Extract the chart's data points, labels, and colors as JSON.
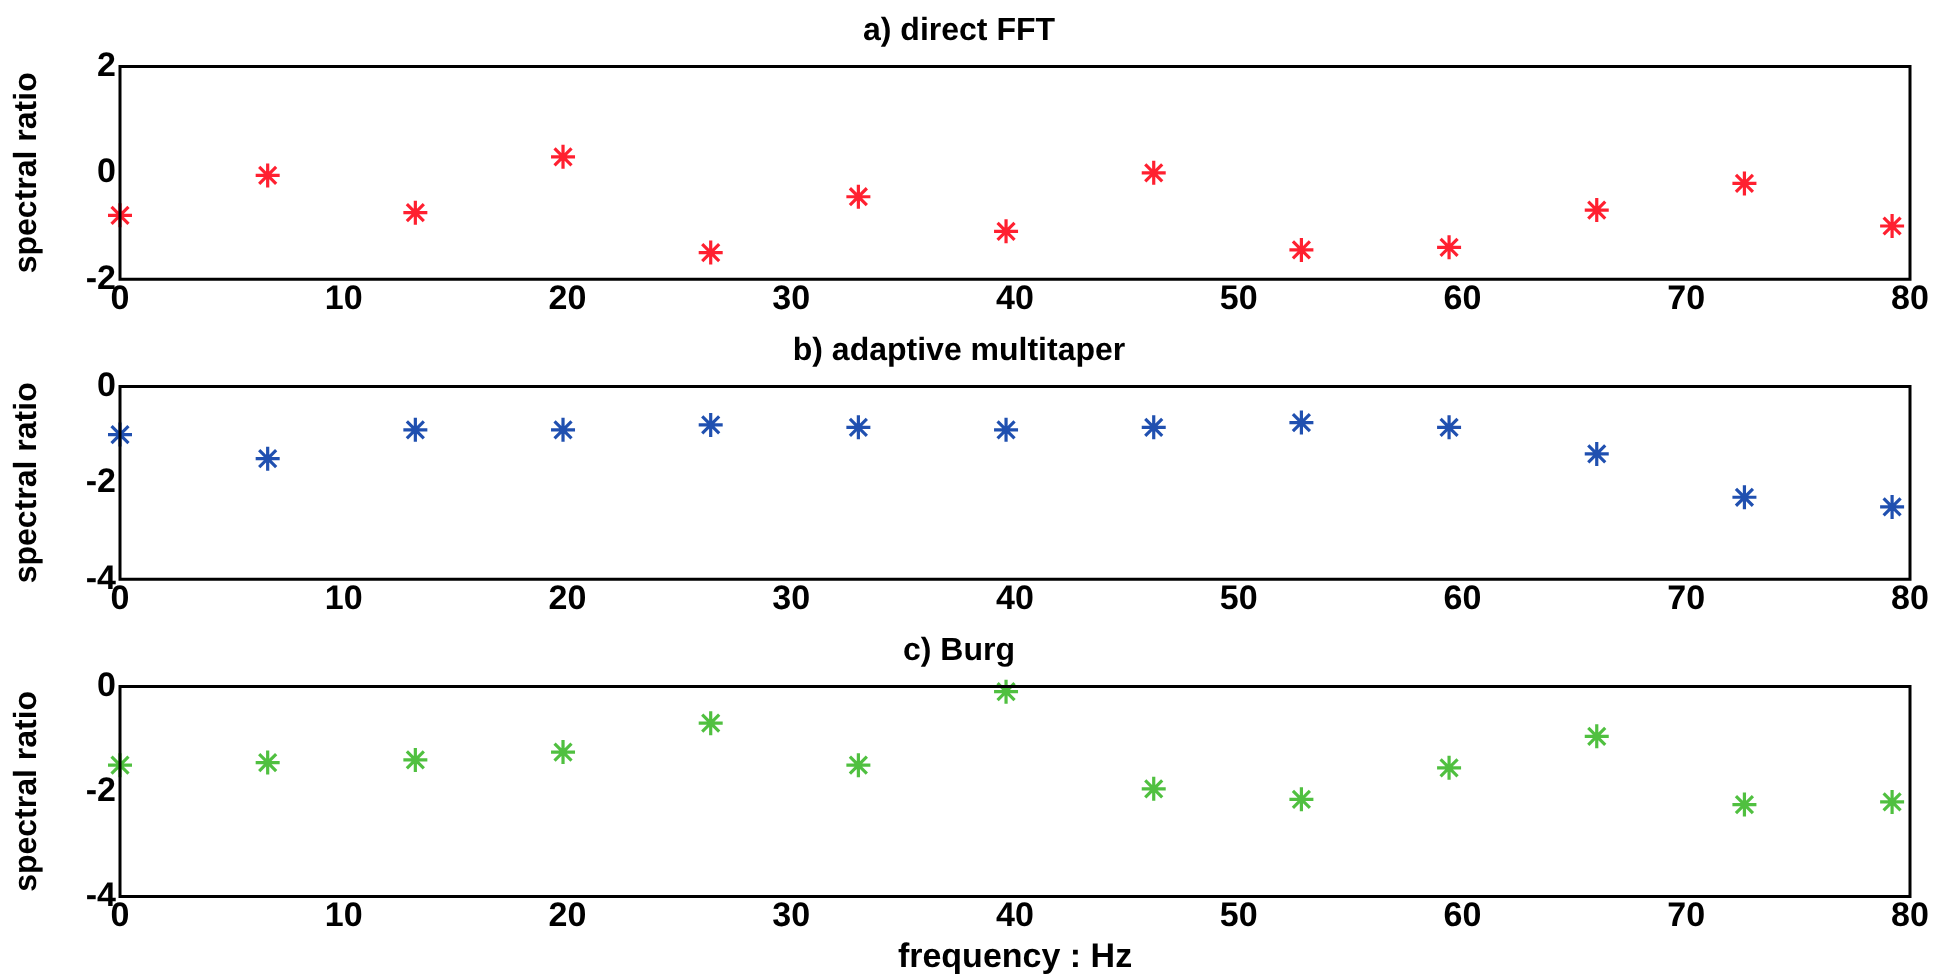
{
  "chart_data": [
    {
      "type": "scatter",
      "title": "a) direct FFT",
      "ylabel": "spectral ratio",
      "marker": "cross",
      "color": "#ff2030",
      "x": [
        0,
        6.6,
        13.2,
        19.8,
        26.4,
        33,
        39.6,
        46.2,
        52.8,
        59.4,
        66,
        72.6,
        79.2
      ],
      "values": [
        -0.8,
        -0.05,
        -0.75,
        0.3,
        -1.5,
        -0.45,
        -1.1,
        0.0,
        -1.45,
        -1.4,
        -0.7,
        -0.2,
        -1.0
      ],
      "xlim": [
        0,
        80
      ],
      "xticks": [
        0,
        10,
        20,
        30,
        40,
        50,
        60,
        70,
        80
      ],
      "ylim": [
        -2,
        2
      ],
      "yticks": [
        -2,
        0,
        2
      ]
    },
    {
      "type": "scatter",
      "title": "b) adaptive multitaper",
      "ylabel": "spectral ratio",
      "marker": "cross",
      "color": "#2050b0",
      "x": [
        0,
        6.6,
        13.2,
        19.8,
        26.4,
        33,
        39.6,
        46.2,
        52.8,
        59.4,
        66,
        72.6,
        79.2
      ],
      "values": [
        -1.0,
        -1.5,
        -0.9,
        -0.9,
        -0.8,
        -0.85,
        -0.9,
        -0.85,
        -0.75,
        -0.85,
        -1.4,
        -2.3,
        -2.5
      ],
      "xlim": [
        0,
        80
      ],
      "xticks": [
        0,
        10,
        20,
        30,
        40,
        50,
        60,
        70,
        80
      ],
      "ylim": [
        -4,
        0
      ],
      "yticks": [
        -4,
        -2,
        0
      ]
    },
    {
      "type": "scatter",
      "title": "c) Burg",
      "ylabel": "spectral ratio",
      "xlabel": "frequency : Hz",
      "marker": "cross",
      "color": "#50c040",
      "x": [
        0,
        6.6,
        13.2,
        19.8,
        26.4,
        33,
        39.6,
        46.2,
        52.8,
        59.4,
        66,
        72.6,
        79.2
      ],
      "values": [
        -1.5,
        -1.45,
        -1.4,
        -1.25,
        -0.7,
        -1.5,
        -0.1,
        -1.95,
        -2.15,
        -1.55,
        -0.95,
        -2.25,
        -2.2
      ],
      "xlim": [
        0,
        80
      ],
      "xticks": [
        0,
        10,
        20,
        30,
        40,
        50,
        60,
        70,
        80
      ],
      "ylim": [
        -4,
        0
      ],
      "yticks": [
        -4,
        -2,
        0
      ]
    }
  ]
}
